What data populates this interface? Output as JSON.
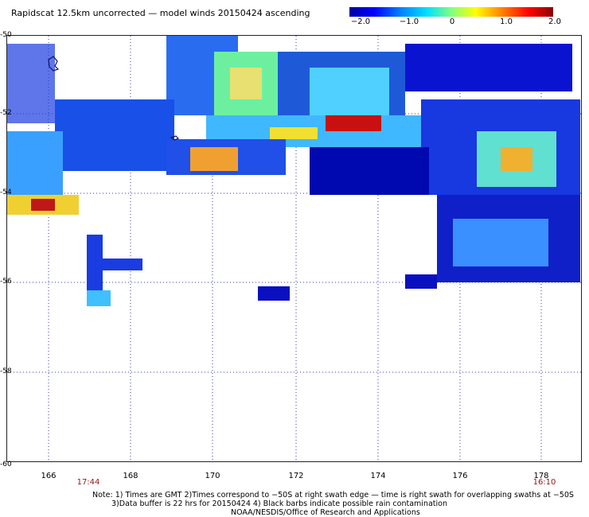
{
  "title": "Rapidscat 12.5km uncorrected — model winds 20150424 ascending",
  "colorbar": {
    "ticks": [
      "−2.0",
      "−1.0",
      "0",
      "1.0",
      "2.0"
    ],
    "colors": [
      "#0000a0",
      "#0000ff",
      "#0080ff",
      "#00e0ff",
      "#80ff80",
      "#ffff00",
      "#ff8000",
      "#ff0000",
      "#8b0000"
    ]
  },
  "axes": {
    "lat_labels": [
      "-50",
      "-52",
      "-54",
      "-56",
      "-58",
      "-60"
    ],
    "lon_labels": [
      "166",
      "168",
      "170",
      "172",
      "174",
      "176",
      "178"
    ],
    "time_left": "17:44",
    "time_right": "16:10"
  },
  "notes": {
    "line1": "Note: 1) Times are GMT 2)Times correspond to −50S at right swath edge — time is right swath for overlapping swaths at −50S",
    "line2": "3)Data buffer is 22 hrs for 20150424 4) Black barbs indicate possible rain contamination",
    "line3": "NOAA/NESDIS/Office of Research and Applications"
  }
}
